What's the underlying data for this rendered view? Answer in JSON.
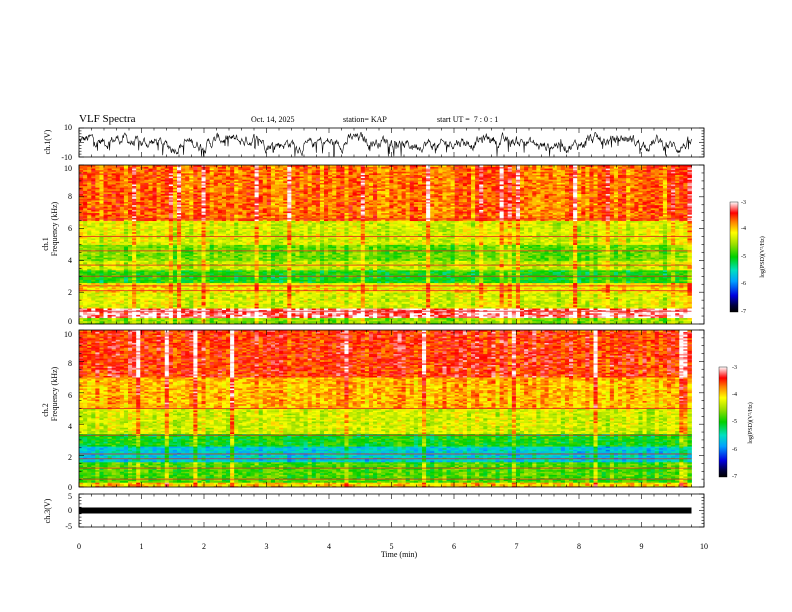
{
  "header": {
    "title": "VLF Spectra",
    "date": "Oct. 14, 2025",
    "station": "station= KAP",
    "start": "start UT =  7 : 0 : 1"
  },
  "chart_data": [
    {
      "type": "line",
      "ylabel": "ch.1(V)",
      "ylim": [
        -10,
        10
      ],
      "yticks": [
        "10",
        "-10"
      ],
      "xlim": [
        0,
        10
      ],
      "x_extent": [
        0,
        9.8
      ],
      "description_level": [
        1.5,
        -6
      ],
      "color": "#000000"
    },
    {
      "type": "heatmap",
      "ylabel_top": "ch.1",
      "ylabel": "Frequency (kHz)",
      "ylim": [
        0,
        10
      ],
      "yticks": [
        "0",
        "2",
        "4",
        "6",
        "8",
        "10"
      ],
      "xlim": [
        0,
        10
      ],
      "x_extent": [
        0,
        9.8
      ],
      "colorbar": {
        "label": "log(PSD)(V²/Hz)",
        "range": [
          -7,
          -3
        ],
        "ticks": [
          "-3",
          "-4",
          "-5",
          "-6",
          "-7"
        ]
      },
      "bands": [
        {
          "f": [
            0.0,
            0.4
          ],
          "level": -4.6
        },
        {
          "f": [
            0.4,
            1.0
          ],
          "level": -3.2
        },
        {
          "f": [
            1.0,
            2.0
          ],
          "level": -4.3
        },
        {
          "f": [
            2.0,
            2.6
          ],
          "level": -4.1
        },
        {
          "f": [
            2.6,
            3.4
          ],
          "level": -5.0
        },
        {
          "f": [
            3.4,
            4.0
          ],
          "level": -4.4
        },
        {
          "f": [
            4.0,
            5.0
          ],
          "level": -4.7
        },
        {
          "f": [
            5.0,
            6.5
          ],
          "level": -4.3
        },
        {
          "f": [
            6.5,
            10.0
          ],
          "level": -3.7
        }
      ],
      "lines_kHz": [
        0.8,
        2.1,
        2.4,
        3.0,
        3.7,
        4.6,
        5.5,
        6.6
      ]
    },
    {
      "type": "heatmap",
      "ylabel_top": "ch.2",
      "ylabel": "Frequency (kHz)",
      "ylim": [
        0,
        10
      ],
      "yticks": [
        "0",
        "2",
        "4",
        "6",
        "8",
        "10"
      ],
      "xlim": [
        0,
        10
      ],
      "x_extent": [
        0,
        9.8
      ],
      "colorbar": {
        "label": "log(PSD)(V²/Hz)",
        "range": [
          -7,
          -3
        ],
        "ticks": [
          "-3",
          "-4",
          "-5",
          "-6",
          "-7"
        ]
      },
      "bands": [
        {
          "f": [
            0.0,
            0.3
          ],
          "level": -4.0
        },
        {
          "f": [
            0.3,
            1.6
          ],
          "level": -4.8
        },
        {
          "f": [
            1.6,
            2.6
          ],
          "level": -5.6
        },
        {
          "f": [
            2.6,
            3.4
          ],
          "level": -5.0
        },
        {
          "f": [
            3.4,
            5.0
          ],
          "level": -4.3
        },
        {
          "f": [
            5.0,
            7.0
          ],
          "level": -3.9
        },
        {
          "f": [
            7.0,
            10.0
          ],
          "level": -3.5
        }
      ],
      "lines_kHz": [
        0.5,
        1.2,
        1.8,
        2.1,
        3.3,
        5.0
      ]
    },
    {
      "type": "line",
      "ylabel": "ch.3(V)",
      "ylim": [
        -5,
        5
      ],
      "yticks": [
        "5",
        "0",
        "-5"
      ],
      "xlim": [
        0,
        10
      ],
      "x_extent": [
        0,
        9.8
      ],
      "level": 0,
      "color": "#000000"
    }
  ],
  "xaxis": {
    "label": "Time (min)",
    "range": [
      0,
      10
    ],
    "ticks": [
      "0",
      "1",
      "2",
      "3",
      "4",
      "5",
      "6",
      "7",
      "8",
      "9",
      "10"
    ]
  }
}
